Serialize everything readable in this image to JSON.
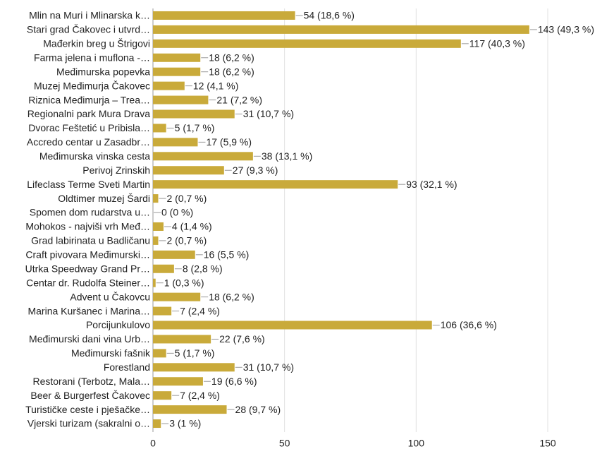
{
  "chart_data": {
    "type": "bar",
    "orientation": "horizontal",
    "color": "#c9aa3a",
    "grid": true,
    "categories": [
      "Mlin na Muri i Mlinarska k…",
      "Stari grad Čakovec i utvrd…",
      "Mađerkin breg u Štrigovi",
      "Farma jelena i muflona -…",
      "Međimurska popevka",
      "Muzej Međimurja Čakovec",
      "Riznica Međimurja – Trea…",
      "Regionalni park Mura Drava",
      "Dvorac Feštetić u Pribisla…",
      "Accredo centar u Zasadbr…",
      "Međimurska vinska cesta",
      "Perivoj Zrinskih",
      "Lifeclass Terme Sveti Martin",
      "Oldtimer muzej Šardi",
      "Spomen dom rudarstva u…",
      "Mohokos - najviši vrh Međ…",
      "Grad labirinata u Badličanu",
      "Craft pivovara Međimurski…",
      "Utrka Speedway Grand Pr…",
      "Centar dr. Rudolfa Steiner…",
      "Advent u Čakovcu",
      "Marina Kuršanec i Marina…",
      "Porcijunkulovo",
      "Međimurski dani vina Urb…",
      "Međimurski fašnik",
      "Forestland",
      "Restorani (Terbotz, Mala…",
      "Beer & Burgerfest Čakovec",
      "Turističke ceste i pješačke…",
      "Vjerski turizam (sakralni o…"
    ],
    "values": [
      54,
      143,
      117,
      18,
      18,
      12,
      21,
      31,
      5,
      17,
      38,
      27,
      93,
      2,
      0,
      4,
      2,
      16,
      8,
      1,
      18,
      7,
      106,
      22,
      5,
      31,
      19,
      7,
      28,
      3
    ],
    "value_labels": [
      "54 (18,6 %)",
      "143 (49,3 %)",
      "117 (40,3 %)",
      "18 (6,2 %)",
      "18 (6,2 %)",
      "12 (4,1 %)",
      "21 (7,2 %)",
      "31 (10,7 %)",
      "5 (1,7 %)",
      "17 (5,9 %)",
      "38 (13,1 %)",
      "27 (9,3 %)",
      "93 (32,1 %)",
      "2 (0,7 %)",
      "0 (0 %)",
      "4 (1,4 %)",
      "2 (0,7 %)",
      "16 (5,5 %)",
      "8 (2,8 %)",
      "1 (0,3 %)",
      "18 (6,2 %)",
      "7 (2,4 %)",
      "106 (36,6 %)",
      "22 (7,6 %)",
      "5 (1,7 %)",
      "31 (10,7 %)",
      "19 (6,6 %)",
      "7 (2,4 %)",
      "28 (9,7 %)",
      "3 (1 %)"
    ],
    "xlim": [
      0,
      150
    ],
    "xticks": [
      0,
      50,
      100,
      150
    ]
  }
}
